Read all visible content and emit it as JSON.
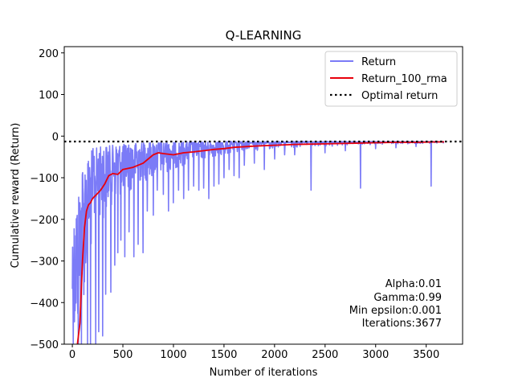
{
  "chart_data": {
    "type": "line",
    "title": "Q-LEARNING",
    "xlabel": "Number of iterations",
    "ylabel": "Cumulative reward (Return)",
    "xlim": [
      -80,
      3860
    ],
    "ylim": [
      -500,
      215
    ],
    "xticks": [
      0,
      500,
      1000,
      1500,
      2000,
      2500,
      3000,
      3500
    ],
    "yticks": [
      200,
      100,
      0,
      -100,
      -200,
      -300,
      -400,
      -500
    ],
    "grid": false,
    "legend_position": "top-right",
    "legend": [
      "Return",
      "Return_100_rma",
      "Optimal return"
    ],
    "series": [
      {
        "name": "Return",
        "color": "#7b7bf7",
        "style": "raw noisy return per iteration",
        "envelope": {
          "x": [
            0,
            50,
            100,
            150,
            200,
            300,
            400,
            500,
            600,
            700,
            800,
            900,
            1000,
            1100,
            1200,
            1300,
            1400,
            1500,
            1600,
            1800,
            2000,
            2200,
            2400,
            2600,
            2800,
            3000,
            3200,
            3400,
            3600,
            3677
          ],
          "upper": [
            -230,
            -160,
            -70,
            -60,
            -30,
            -25,
            -22,
            -20,
            -18,
            -16,
            -15,
            -15,
            -15,
            -14,
            -14,
            -14,
            -14,
            -13,
            -13,
            -13,
            -13,
            -13,
            -13,
            -13,
            -13,
            -13,
            -13,
            -13,
            -13,
            -13
          ],
          "typical_low": [
            -500,
            -500,
            -420,
            -330,
            -260,
            -200,
            -160,
            -140,
            -130,
            -110,
            -100,
            -90,
            -80,
            -70,
            -60,
            -55,
            -50,
            -45,
            -40,
            -35,
            -30,
            -28,
            -26,
            -24,
            -22,
            -20,
            -19,
            -18,
            -17,
            -17
          ]
        },
        "spikes": [
          {
            "x": 60,
            "y": -500
          },
          {
            "x": 90,
            "y": -500
          },
          {
            "x": 120,
            "y": -350
          },
          {
            "x": 150,
            "y": -500
          },
          {
            "x": 180,
            "y": -500
          },
          {
            "x": 230,
            "y": -500
          },
          {
            "x": 260,
            "y": -470
          },
          {
            "x": 300,
            "y": -480
          },
          {
            "x": 330,
            "y": -380
          },
          {
            "x": 380,
            "y": -375
          },
          {
            "x": 420,
            "y": -310
          },
          {
            "x": 450,
            "y": -280
          },
          {
            "x": 480,
            "y": -250
          },
          {
            "x": 520,
            "y": -290
          },
          {
            "x": 560,
            "y": -230
          },
          {
            "x": 610,
            "y": -290
          },
          {
            "x": 650,
            "y": -260
          },
          {
            "x": 700,
            "y": -280
          },
          {
            "x": 740,
            "y": -180
          },
          {
            "x": 800,
            "y": -190
          },
          {
            "x": 840,
            "y": -130
          },
          {
            "x": 900,
            "y": -140
          },
          {
            "x": 950,
            "y": -180
          },
          {
            "x": 1000,
            "y": -160
          },
          {
            "x": 1050,
            "y": -130
          },
          {
            "x": 1100,
            "y": -150
          },
          {
            "x": 1150,
            "y": -130
          },
          {
            "x": 1200,
            "y": -120
          },
          {
            "x": 1250,
            "y": -130
          },
          {
            "x": 1300,
            "y": -125
          },
          {
            "x": 1350,
            "y": -150
          },
          {
            "x": 1400,
            "y": -120
          },
          {
            "x": 1450,
            "y": -115
          },
          {
            "x": 1500,
            "y": -100
          },
          {
            "x": 1550,
            "y": -80
          },
          {
            "x": 1600,
            "y": -95
          },
          {
            "x": 1650,
            "y": -100
          },
          {
            "x": 1700,
            "y": -70
          },
          {
            "x": 1800,
            "y": -65
          },
          {
            "x": 1900,
            "y": -80
          },
          {
            "x": 2000,
            "y": -55
          },
          {
            "x": 2100,
            "y": -45
          },
          {
            "x": 2200,
            "y": -45
          },
          {
            "x": 2360,
            "y": -130
          },
          {
            "x": 2500,
            "y": -40
          },
          {
            "x": 2700,
            "y": -35
          },
          {
            "x": 2850,
            "y": -125
          },
          {
            "x": 3000,
            "y": -30
          },
          {
            "x": 3200,
            "y": -28
          },
          {
            "x": 3400,
            "y": -25
          },
          {
            "x": 3550,
            "y": -120
          }
        ]
      },
      {
        "name": "Return_100_rma",
        "color": "#e8000b",
        "x": [
          50,
          75,
          100,
          120,
          140,
          160,
          180,
          200,
          240,
          280,
          320,
          360,
          400,
          450,
          500,
          600,
          700,
          800,
          850,
          900,
          1000,
          1100,
          1200,
          1300,
          1400,
          1500,
          1600,
          1800,
          2000,
          2200,
          2400,
          2600,
          2800,
          3000,
          3200,
          3400,
          3600,
          3677
        ],
        "y": [
          -500,
          -450,
          -300,
          -220,
          -180,
          -165,
          -160,
          -150,
          -140,
          -130,
          -115,
          -95,
          -90,
          -92,
          -80,
          -75,
          -65,
          -45,
          -40,
          -42,
          -45,
          -40,
          -38,
          -35,
          -32,
          -30,
          -27,
          -24,
          -22,
          -20,
          -19,
          -18,
          -17,
          -16,
          -15,
          -15,
          -14,
          -14
        ]
      },
      {
        "name": "Optimal return",
        "color": "#000000",
        "style": "dotted horizontal line",
        "y": -13
      }
    ],
    "annotations": [
      "Alpha:0.01",
      "Gamma:0.99",
      "Min epsilon:0.001",
      "Iterations:3677"
    ]
  }
}
